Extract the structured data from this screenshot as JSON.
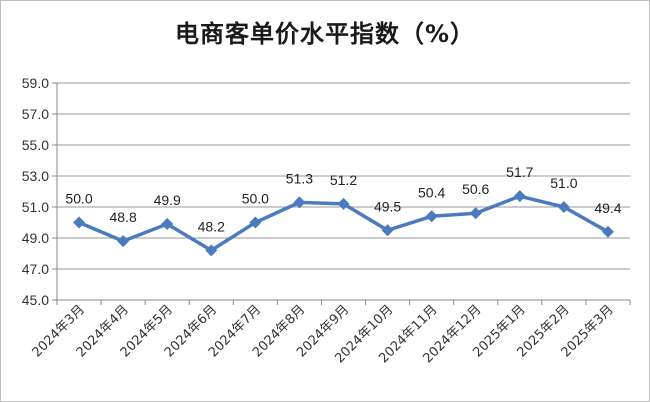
{
  "chart_data": {
    "type": "line",
    "title": "电商客单价水平指数（%）",
    "categories": [
      "2024年3月",
      "2024年4月",
      "2024年5月",
      "2024年6月",
      "2024年7月",
      "2024年8月",
      "2024年9月",
      "2024年10月",
      "2024年11月",
      "2024年12月",
      "2025年1月",
      "2025年2月",
      "2025年3月"
    ],
    "values": [
      50.0,
      48.8,
      49.9,
      48.2,
      50.0,
      51.3,
      51.2,
      49.5,
      50.4,
      50.6,
      51.7,
      51.0,
      49.4
    ],
    "value_labels": [
      "50.0",
      "48.8",
      "49.9",
      "48.2",
      "50.0",
      "51.3",
      "51.2",
      "49.5",
      "50.4",
      "50.6",
      "51.7",
      "51.0",
      "49.4"
    ],
    "ylim": [
      45.0,
      59.0
    ],
    "yticks": [
      "45.0",
      "47.0",
      "49.0",
      "51.0",
      "53.0",
      "55.0",
      "57.0",
      "59.0"
    ],
    "grid": true,
    "series_color": "#4a7bbf",
    "xlabel": "",
    "ylabel": ""
  }
}
